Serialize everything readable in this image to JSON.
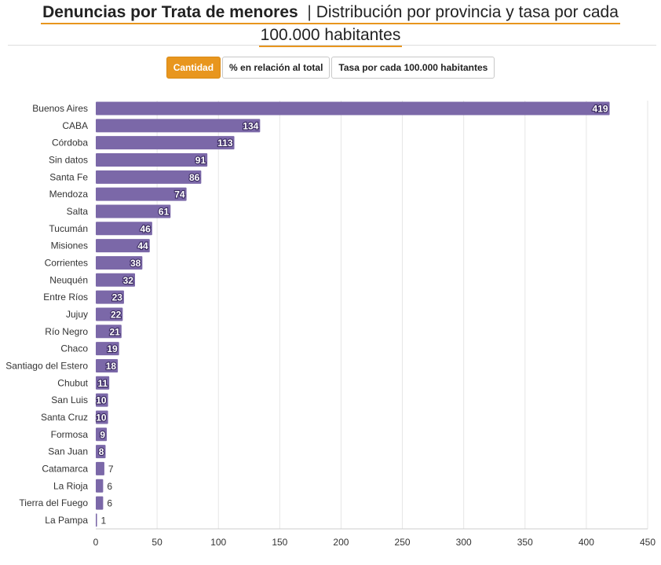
{
  "title": {
    "bold": "Denuncias por Trata de menores",
    "separator": "|",
    "rest_line1": "Distribución por provincia y tasa por cada",
    "rest_line2": "100.000 habitantes"
  },
  "buttons": [
    {
      "label": "Cantidad",
      "active": true
    },
    {
      "label": "% en relación al total",
      "active": false
    },
    {
      "label": "Tasa por cada 100.000 habitantes",
      "active": false
    }
  ],
  "colors": {
    "accent": "#e8961e",
    "bar": "#7b68a8",
    "grid": "#e6e6e6"
  },
  "chart_data": {
    "type": "bar",
    "orientation": "horizontal",
    "categories": [
      "Buenos Aires",
      "CABA",
      "Córdoba",
      "Sin datos",
      "Santa Fe",
      "Mendoza",
      "Salta",
      "Tucumán",
      "Misiones",
      "Corrientes",
      "Neuquén",
      "Entre Ríos",
      "Jujuy",
      "Río Negro",
      "Chaco",
      "Santiago del Estero",
      "Chubut",
      "San Luis",
      "Santa Cruz",
      "Formosa",
      "San Juan",
      "Catamarca",
      "La Rioja",
      "Tierra del Fuego",
      "La Pampa"
    ],
    "values": [
      419,
      134,
      113,
      91,
      86,
      74,
      61,
      46,
      44,
      38,
      32,
      23,
      22,
      21,
      19,
      18,
      11,
      10,
      10,
      9,
      8,
      7,
      6,
      6,
      1
    ],
    "xlim": [
      0,
      450
    ],
    "xticks": [
      0,
      50,
      100,
      150,
      200,
      250,
      300,
      350,
      400,
      450
    ],
    "grid": true,
    "xlabel": "",
    "ylabel": ""
  }
}
